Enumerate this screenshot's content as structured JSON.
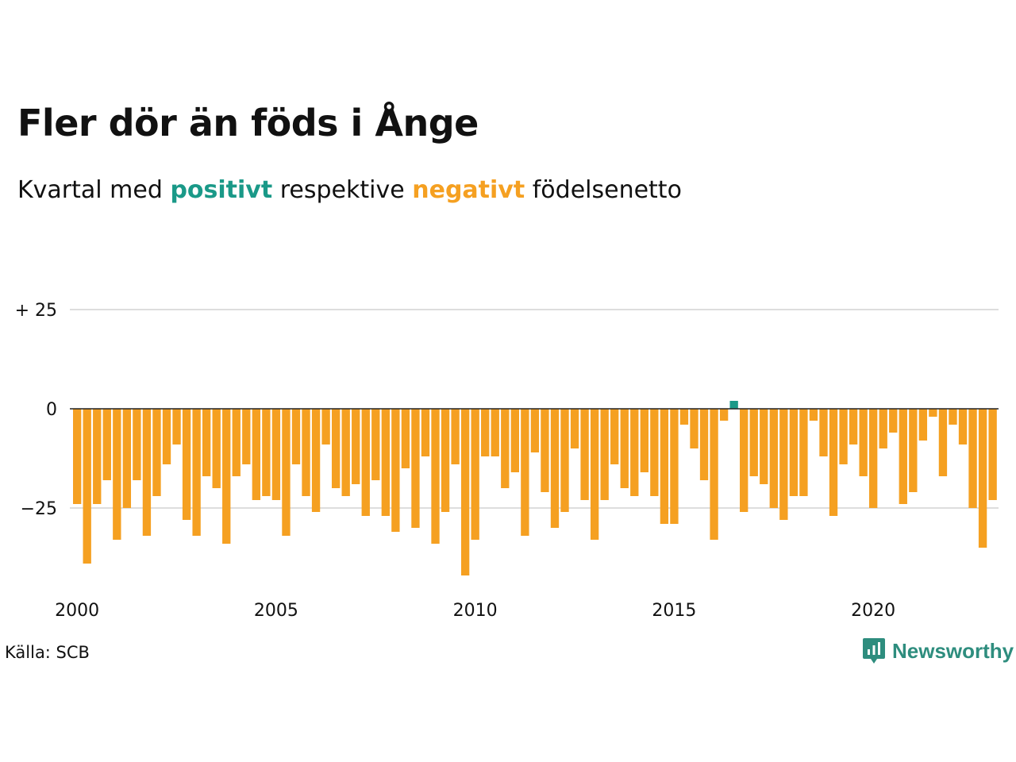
{
  "title": "Fler dör än föds i Ånge",
  "subtitle": {
    "pre": "Kvartal med",
    "positive_word": "positivt",
    "mid": "respektive",
    "negative_word": "negativt",
    "post": "födelsenetto"
  },
  "source": "Källa: SCB",
  "brand": {
    "name": "Newsworthy",
    "icon": "newsworthy-logo-icon"
  },
  "colors": {
    "positive": "#1a9988",
    "negative": "#f5a021",
    "grid": "#dddddd",
    "zero": "#222222",
    "brand": "#2e8d7e"
  },
  "chart_data": {
    "type": "bar",
    "title": "Fler dör än föds i Ånge",
    "subtitle": "Kvartal med positivt respektive negativt födelsenetto",
    "xlabel": "",
    "ylabel": "",
    "x_ticks": [
      2000,
      2005,
      2010,
      2015,
      2020
    ],
    "x_tick_labels": [
      "2000",
      "2005",
      "2010",
      "2015",
      "2020"
    ],
    "y_ticks": [
      25,
      0,
      -25
    ],
    "y_tick_labels": [
      "+ 25",
      "0",
      "−25"
    ],
    "ylim": [
      -45,
      32
    ],
    "grid": true,
    "start_year": 2000,
    "start_quarter": 1,
    "values": [
      -24,
      -39,
      -24,
      -18,
      -33,
      -25,
      -18,
      -32,
      -22,
      -14,
      -9,
      -28,
      -32,
      -17,
      -20,
      -34,
      -17,
      -14,
      -23,
      -22,
      -23,
      -32,
      -14,
      -22,
      -26,
      -9,
      -20,
      -22,
      -19,
      -27,
      -18,
      -27,
      -31,
      -15,
      -30,
      -12,
      -34,
      -26,
      -14,
      -42,
      -33,
      -12,
      -12,
      -20,
      -16,
      -32,
      -11,
      -21,
      -30,
      -26,
      -10,
      -23,
      -33,
      -23,
      -14,
      -20,
      -22,
      -16,
      -22,
      -29,
      -29,
      -4,
      -10,
      -18,
      -33,
      -3,
      2,
      -26,
      -17,
      -19,
      -25,
      -28,
      -22,
      -22,
      -3,
      -12,
      -27,
      -14,
      -9,
      -17,
      -25,
      -10,
      -6,
      -24,
      -21,
      -8,
      -2,
      -17,
      -4,
      -9,
      -25,
      -35,
      -23
    ]
  }
}
